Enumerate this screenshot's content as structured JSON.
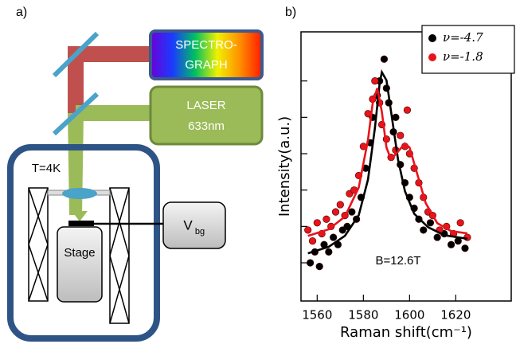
{
  "diagram": {
    "label": "a)",
    "spectrograph": [
      "SPECTRO-",
      "GRAPH"
    ],
    "laser": [
      "LASER",
      "633nm"
    ],
    "temperature": "T=4K",
    "stage": "Stage",
    "gate": {
      "text": "V",
      "subscript": "bg"
    }
  },
  "chart_data": {
    "type": "scatter",
    "panel_label": "b)",
    "x_label": "Raman shift(cm⁻¹)",
    "y_label": "Intensity(a.u.)",
    "annotation": "B=12.6T",
    "xlim": [
      1553,
      1644
    ],
    "xticks": [
      1560,
      1580,
      1600,
      1620
    ],
    "ylim": [
      -0.05,
      7.35
    ],
    "yticks": [
      1,
      2,
      3,
      4,
      5,
      6
    ],
    "legend": "upper right",
    "series": [
      {
        "name": "ν=-4.7",
        "type": "scatter",
        "color": "#000000",
        "x": [
          1557,
          1559,
          1561,
          1563,
          1565,
          1567,
          1569,
          1571,
          1573,
          1575,
          1577,
          1579,
          1581,
          1583,
          1584,
          1586,
          1587,
          1589,
          1590,
          1591,
          1593,
          1594,
          1596,
          1598,
          1600,
          1602,
          1604,
          1606,
          1609,
          1612,
          1615,
          1618,
          1621,
          1624
        ],
        "values": [
          1.0,
          1.3,
          0.9,
          1.5,
          1.3,
          1.7,
          1.5,
          1.9,
          2.0,
          2.4,
          2.2,
          2.8,
          3.6,
          4.3,
          5.0,
          5.6,
          6.0,
          6.6,
          5.8,
          5.4,
          4.6,
          5.0,
          3.7,
          3.2,
          2.8,
          2.5,
          2.2,
          1.9,
          2.1,
          1.7,
          1.8,
          1.5,
          1.6,
          1.4
        ]
      },
      {
        "name": "ν=-1.8",
        "type": "scatter",
        "color": "#e8141b",
        "x": [
          1556,
          1558,
          1560,
          1562,
          1564,
          1566,
          1568,
          1570,
          1572,
          1574,
          1576,
          1578,
          1580,
          1582,
          1584,
          1585,
          1587,
          1588,
          1590,
          1592,
          1594,
          1596,
          1598,
          1599,
          1600,
          1602,
          1604,
          1606,
          1608,
          1610,
          1613,
          1616,
          1619,
          1622,
          1625
        ],
        "values": [
          1.9,
          1.6,
          2.1,
          1.8,
          2.2,
          2.0,
          2.4,
          2.6,
          2.3,
          2.9,
          3.0,
          3.4,
          4.2,
          5.1,
          5.5,
          6.0,
          5.4,
          4.8,
          4.4,
          3.9,
          4.1,
          4.5,
          4.2,
          5.2,
          4.0,
          3.6,
          3.2,
          2.8,
          2.4,
          2.3,
          1.9,
          2.0,
          1.8,
          2.1,
          1.7
        ]
      },
      {
        "type": "line",
        "color": "#000000",
        "x": [
          1556,
          1565,
          1572,
          1578,
          1582,
          1585,
          1587,
          1588,
          1590,
          1592,
          1595,
          1598,
          1602,
          1608,
          1615,
          1625
        ],
        "values": [
          1.26,
          1.44,
          1.74,
          2.31,
          3.29,
          4.71,
          5.91,
          6.24,
          6.02,
          5.15,
          3.84,
          2.97,
          2.35,
          1.98,
          1.76,
          1.66
        ]
      },
      {
        "type": "line",
        "color": "#e8141b",
        "x": [
          1556,
          1565,
          1572,
          1578,
          1582,
          1584,
          1586,
          1588,
          1590,
          1592,
          1595,
          1598,
          1600,
          1603,
          1607,
          1612,
          1618,
          1625
        ],
        "values": [
          1.74,
          1.92,
          2.27,
          3.07,
          4.38,
          5.37,
          5.8,
          5.15,
          4.17,
          3.84,
          4.06,
          4.28,
          4.17,
          3.51,
          2.64,
          2.09,
          1.87,
          1.81
        ]
      }
    ]
  }
}
